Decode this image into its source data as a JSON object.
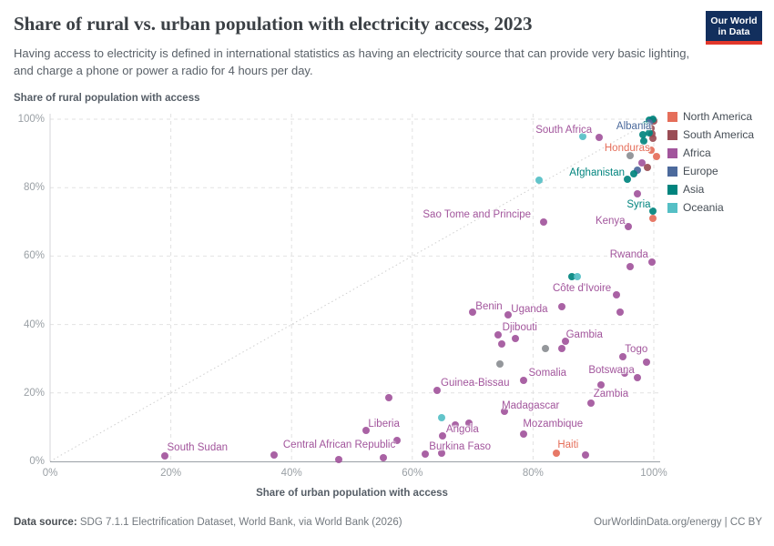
{
  "header": {
    "title": "Share of rural vs. urban population with electricity access, 2023",
    "subtitle": "Having access to electricity is defined in international statistics as having an electricity source that can provide very basic lighting, and charge a phone or power a radio for 4 hours per day.",
    "logo": {
      "line1": "Our World",
      "line2": "in Data",
      "bg_color": "#122f5d",
      "accent_color": "#e2372b"
    }
  },
  "footer": {
    "datasource_label": "Data source:",
    "datasource_text": " SDG 7.1.1 Electrification Dataset, World Bank, via World Bank (2026)",
    "link_text": "OurWorldinData.org/energy | CC BY"
  },
  "chart_data": {
    "type": "scatter",
    "title": "Share of rural vs. urban population with electricity access, 2023",
    "xlabel": "Share of urban population with access",
    "ylabel": "Share of rural population with access",
    "xlim": [
      0,
      100
    ],
    "ylim": [
      0,
      100
    ],
    "x_tick_values": [
      0,
      20,
      40,
      60,
      80,
      100
    ],
    "x_tick_labels": [
      "0%",
      "20%",
      "40%",
      "60%",
      "80%",
      "100%"
    ],
    "y_tick_values": [
      0,
      20,
      40,
      60,
      80,
      100
    ],
    "y_tick_labels": [
      "0%",
      "20%",
      "40%",
      "60%",
      "80%",
      "100%"
    ],
    "grid": "dashed",
    "diagonal_reference_line": true,
    "legend_position": "right",
    "colors": {
      "na": "#e56e5a",
      "sa": "#9a4c55",
      "af": "#a2559c",
      "eu": "#4c6a9c",
      "as": "#00847e",
      "oc": "#55bfc5",
      "other": "#8b8e93"
    },
    "legend": [
      {
        "label": "North America",
        "continent": "na"
      },
      {
        "label": "South America",
        "continent": "sa"
      },
      {
        "label": "Africa",
        "continent": "af"
      },
      {
        "label": "Europe",
        "continent": "eu"
      },
      {
        "label": "Asia",
        "continent": "as"
      },
      {
        "label": "Oceania",
        "continent": "oc"
      }
    ],
    "points": [
      {
        "urban": 99.3,
        "rural": 99.8,
        "continent": "as"
      },
      {
        "urban": 100,
        "rural": 99.4,
        "continent": "sa"
      },
      {
        "urban": 99.9,
        "rural": 100,
        "continent": "as"
      },
      {
        "urban": 99.2,
        "rural": 98.9,
        "continent": "eu",
        "label": "Albania",
        "lx": 96.7,
        "ly": 98.0
      },
      {
        "urban": 98.6,
        "rural": 98.4,
        "continent": "as"
      },
      {
        "urban": 99.6,
        "rural": 97.4,
        "continent": "sa"
      },
      {
        "urban": 98.2,
        "rural": 95.6,
        "continent": "as"
      },
      {
        "urban": 99.7,
        "rural": 95.7,
        "continent": "sa"
      },
      {
        "urban": 99.8,
        "rural": 94.3,
        "continent": "sa"
      },
      {
        "urban": 99.2,
        "rural": 96.0,
        "continent": "as"
      },
      {
        "urban": 98.4,
        "rural": 93.5,
        "continent": "as"
      },
      {
        "urban": 99.5,
        "rural": 90.9,
        "continent": "na",
        "label": "Honduras",
        "lx": 95.6,
        "ly": 91.6
      },
      {
        "urban": 96.1,
        "rural": 89.4,
        "continent": "other"
      },
      {
        "urban": 100.4,
        "rural": 89.0,
        "continent": "na"
      },
      {
        "urban": 98.0,
        "rural": 87.2,
        "continent": "af"
      },
      {
        "urban": 98.9,
        "rural": 85.9,
        "continent": "sa"
      },
      {
        "urban": 97.3,
        "rural": 85.1,
        "continent": "eu"
      },
      {
        "urban": 96.7,
        "rural": 84.0,
        "continent": "as",
        "label": "Afghanistan",
        "lx": 90.6,
        "ly": 84.4
      },
      {
        "urban": 95.6,
        "rural": 82.4,
        "continent": "as"
      },
      {
        "urban": 91.0,
        "rural": 94.7,
        "continent": "af",
        "label": "South Africa",
        "lx": 85.1,
        "ly": 96.7
      },
      {
        "urban": 88.2,
        "rural": 94.9,
        "continent": "oc"
      },
      {
        "urban": 81.0,
        "rural": 82.2,
        "continent": "oc"
      },
      {
        "urban": 97.3,
        "rural": 78.2,
        "continent": "af"
      },
      {
        "urban": 99.8,
        "rural": 73.1,
        "continent": "as",
        "label": "Syria",
        "lx": 97.5,
        "ly": 75.0
      },
      {
        "urban": 99.8,
        "rural": 71.0,
        "continent": "na"
      },
      {
        "urban": 95.8,
        "rural": 68.6,
        "continent": "af",
        "label": "Kenya",
        "lx": 92.8,
        "ly": 70.2
      },
      {
        "urban": 81.7,
        "rural": 69.9,
        "continent": "af",
        "label": "Sao Tome and Principe",
        "lx": 70.7,
        "ly": 72.2
      },
      {
        "urban": 99.7,
        "rural": 58.2,
        "continent": "af",
        "label": "Rwanda",
        "lx": 95.9,
        "ly": 60.5
      },
      {
        "urban": 96.1,
        "rural": 56.9,
        "continent": "af"
      },
      {
        "urban": 86.4,
        "rural": 54.0,
        "continent": "as"
      },
      {
        "urban": 87.4,
        "rural": 54.0,
        "continent": "oc"
      },
      {
        "urban": 93.8,
        "rural": 48.7,
        "continent": "af",
        "label": "Côte d'Ivoire",
        "lx": 88.1,
        "ly": 50.5
      },
      {
        "urban": 70.0,
        "rural": 43.6,
        "continent": "af",
        "label": "Benin",
        "lx": 72.7,
        "ly": 45.2
      },
      {
        "urban": 75.9,
        "rural": 42.8,
        "continent": "af",
        "label": "Uganda",
        "lx": 79.4,
        "ly": 44.4
      },
      {
        "urban": 84.8,
        "rural": 45.2,
        "continent": "af"
      },
      {
        "urban": 94.4,
        "rural": 43.6,
        "continent": "af"
      },
      {
        "urban": 74.2,
        "rural": 37.0,
        "continent": "af",
        "label": "Djibouti",
        "lx": 77.8,
        "ly": 39.0
      },
      {
        "urban": 77.1,
        "rural": 35.9,
        "continent": "af"
      },
      {
        "urban": 74.8,
        "rural": 34.3,
        "continent": "af"
      },
      {
        "urban": 85.3,
        "rural": 35.1,
        "continent": "af",
        "label": "Gambia",
        "lx": 88.5,
        "ly": 37.0
      },
      {
        "urban": 84.8,
        "rural": 33.0,
        "continent": "af"
      },
      {
        "urban": 82.0,
        "rural": 33.0,
        "continent": "other"
      },
      {
        "urban": 74.5,
        "rural": 28.5,
        "continent": "other"
      },
      {
        "urban": 98.8,
        "rural": 29.0,
        "continent": "af"
      },
      {
        "urban": 94.9,
        "rural": 30.6,
        "continent": "af",
        "label": "Togo",
        "lx": 97.1,
        "ly": 32.6
      },
      {
        "urban": 95.2,
        "rural": 25.8,
        "continent": "af"
      },
      {
        "urban": 97.3,
        "rural": 24.5,
        "continent": "af",
        "label": "Botswana",
        "lx": 93.0,
        "ly": 26.7
      },
      {
        "urban": 91.2,
        "rural": 22.3,
        "continent": "af"
      },
      {
        "urban": 89.6,
        "rural": 17.0,
        "continent": "af",
        "label": "Zambia",
        "lx": 92.9,
        "ly": 19.7
      },
      {
        "urban": 78.4,
        "rural": 23.7,
        "continent": "af",
        "label": "Somalia",
        "lx": 82.4,
        "ly": 25.7
      },
      {
        "urban": 64.1,
        "rural": 20.7,
        "continent": "af",
        "label": "Guinea-Bissau",
        "lx": 70.4,
        "ly": 22.9
      },
      {
        "urban": 56.1,
        "rural": 18.6,
        "continent": "af"
      },
      {
        "urban": 75.3,
        "rural": 14.6,
        "continent": "af",
        "label": "Madagascar",
        "lx": 79.6,
        "ly": 16.2
      },
      {
        "urban": 64.8,
        "rural": 12.8,
        "continent": "oc"
      },
      {
        "urban": 69.4,
        "rural": 11.2,
        "continent": "af"
      },
      {
        "urban": 67.1,
        "rural": 10.6,
        "continent": "af",
        "label": "Angola",
        "lx": 68.3,
        "ly": 9.3
      },
      {
        "urban": 78.4,
        "rural": 8.0,
        "continent": "af",
        "label": "Mozambique",
        "lx": 83.3,
        "ly": 10.8
      },
      {
        "urban": 52.3,
        "rural": 9.0,
        "continent": "af",
        "label": "Liberia",
        "lx": 55.3,
        "ly": 10.8
      },
      {
        "urban": 65.0,
        "rural": 7.4,
        "continent": "af"
      },
      {
        "urban": 57.5,
        "rural": 6.1,
        "continent": "af"
      },
      {
        "urban": 37.1,
        "rural": 1.9,
        "continent": "af",
        "label": "Central African Republic",
        "lx": 47.9,
        "ly": 4.8
      },
      {
        "urban": 19.0,
        "rural": 1.6,
        "continent": "af",
        "label": "South Sudan",
        "lx": 24.4,
        "ly": 4.0
      },
      {
        "urban": 47.8,
        "rural": 0.5,
        "continent": "af"
      },
      {
        "urban": 55.2,
        "rural": 1.1,
        "continent": "af"
      },
      {
        "urban": 62.1,
        "rural": 2.1,
        "continent": "af",
        "label": "Burkina Faso",
        "lx": 67.9,
        "ly": 4.3
      },
      {
        "urban": 64.9,
        "rural": 2.4,
        "continent": "af"
      },
      {
        "urban": 83.9,
        "rural": 2.4,
        "continent": "na",
        "label": "Haiti",
        "lx": 85.8,
        "ly": 4.7
      },
      {
        "urban": 88.7,
        "rural": 1.9,
        "continent": "af"
      }
    ]
  }
}
